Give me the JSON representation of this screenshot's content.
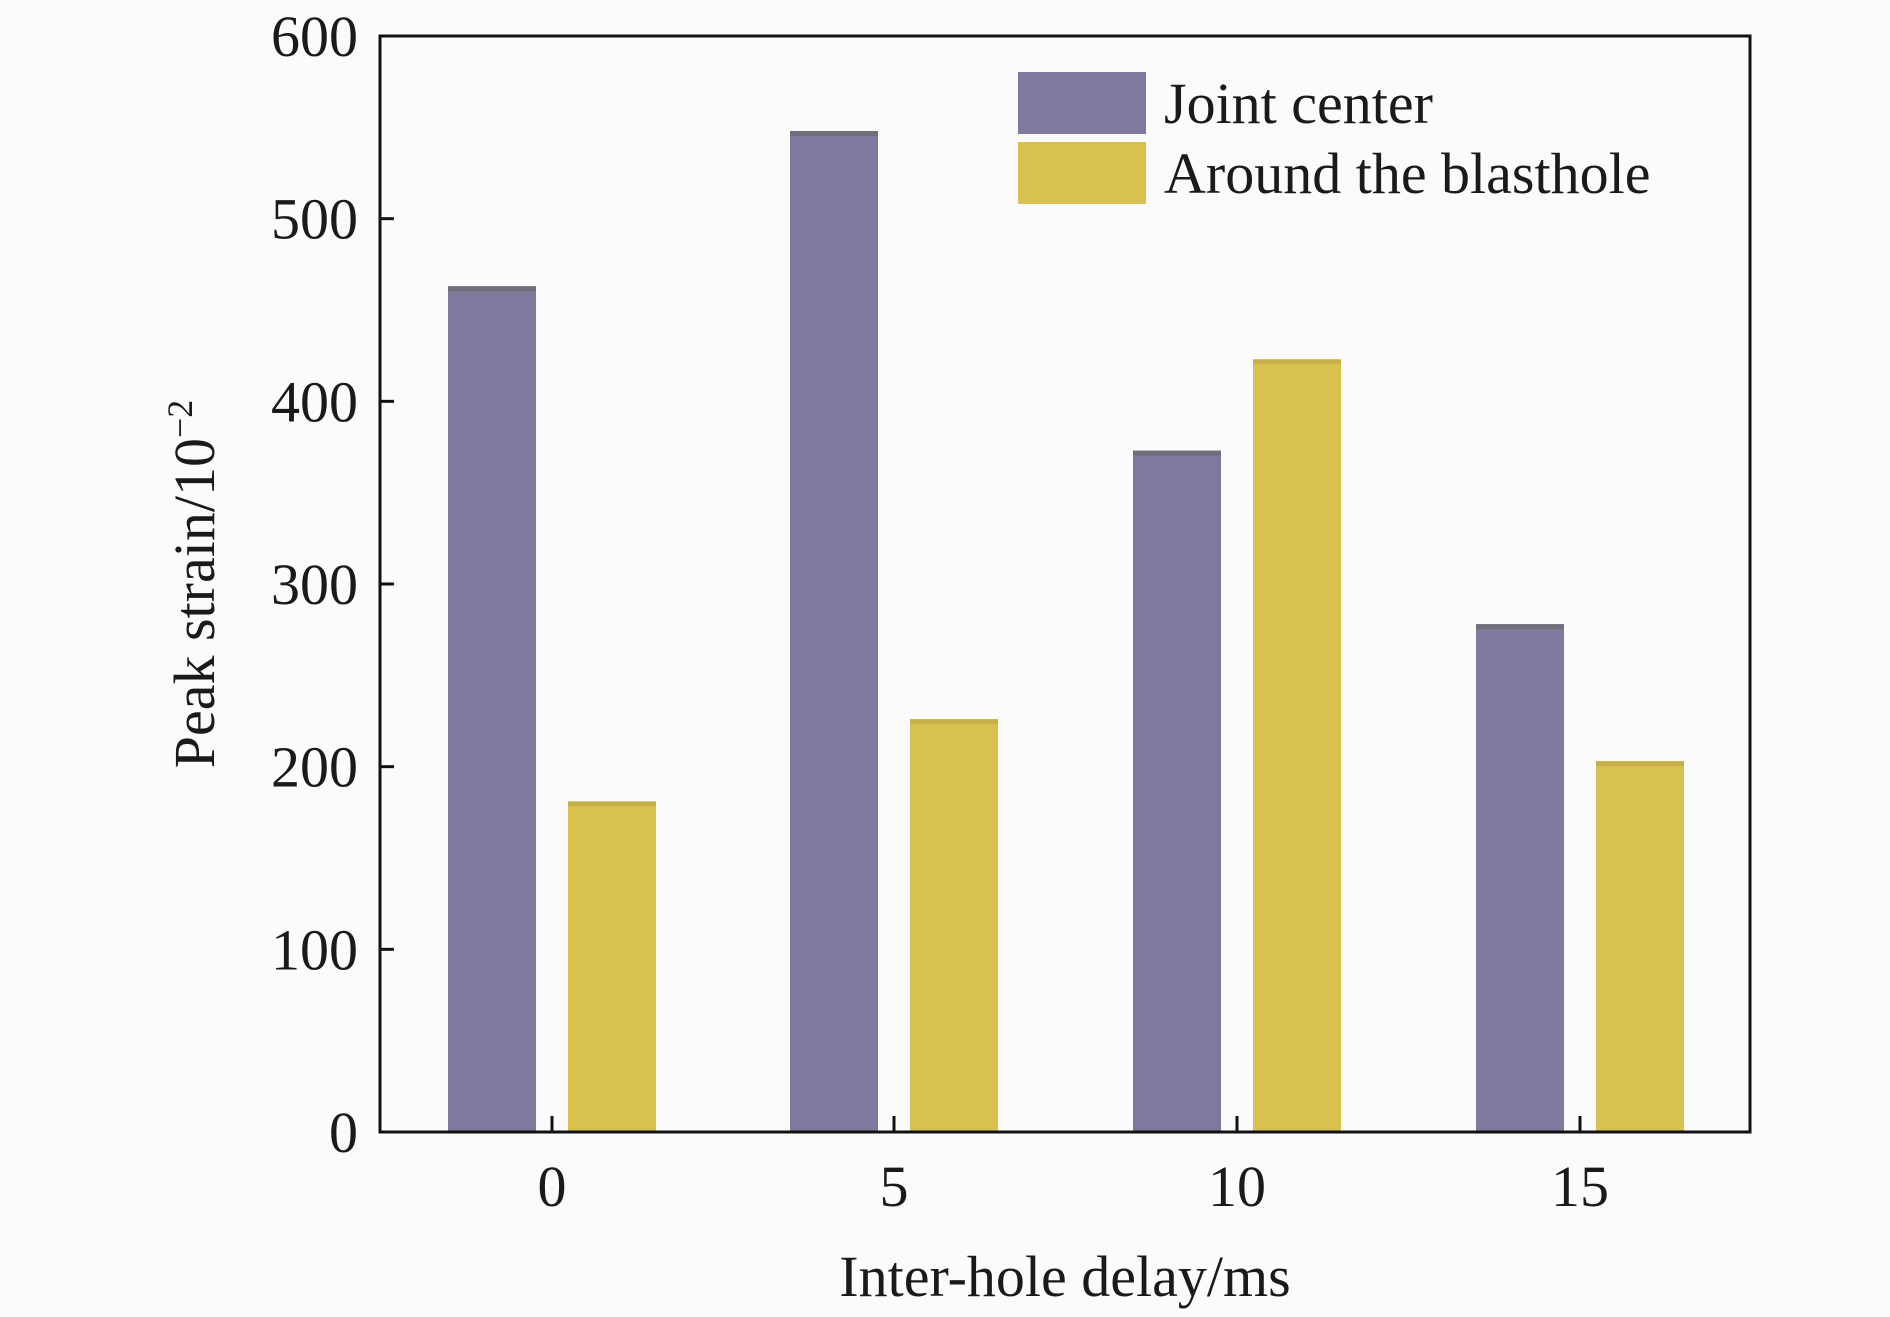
{
  "chart_data": {
    "type": "bar",
    "title": "",
    "xlabel": "Inter-hole delay/ms",
    "ylabel_base": "Peak strain/10",
    "ylabel_exponent": "−2",
    "categories": [
      "0",
      "5",
      "10",
      "15"
    ],
    "series": [
      {
        "name": "Joint center",
        "color": "#7e7a9e",
        "values": [
          463,
          548,
          373,
          278
        ]
      },
      {
        "name": "Around the blasthole",
        "color": "#d8c14e",
        "values": [
          181,
          226,
          423,
          203
        ]
      }
    ],
    "ylim": [
      0,
      600
    ],
    "yticks": [
      "0",
      "100",
      "200",
      "300",
      "400",
      "500",
      "600"
    ],
    "grid": false,
    "legend_position": "top-right"
  }
}
